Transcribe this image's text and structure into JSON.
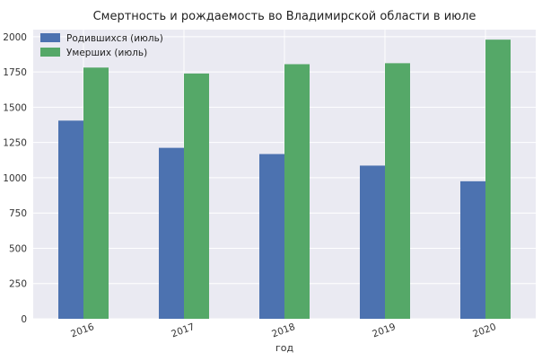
{
  "chart_data": {
    "type": "bar",
    "title": "Смертность и рождаемость во Владимирской области в июле",
    "xlabel": "год",
    "ylabel": "",
    "categories": [
      "2016",
      "2017",
      "2018",
      "2019",
      "2020"
    ],
    "series": [
      {
        "name": "Родившихся (июль)",
        "color": "#4c72b0",
        "values": [
          1405,
          1212,
          1168,
          1086,
          975
        ]
      },
      {
        "name": "Умерших (июль)",
        "color": "#55a868",
        "values": [
          1781,
          1739,
          1805,
          1812,
          1979
        ]
      }
    ],
    "ylim": [
      0,
      2050
    ],
    "yticks": [
      0,
      250,
      500,
      750,
      1000,
      1250,
      1500,
      1750,
      2000
    ],
    "grid": true,
    "legend_position": "top-left",
    "background": "#eaeaf2"
  }
}
